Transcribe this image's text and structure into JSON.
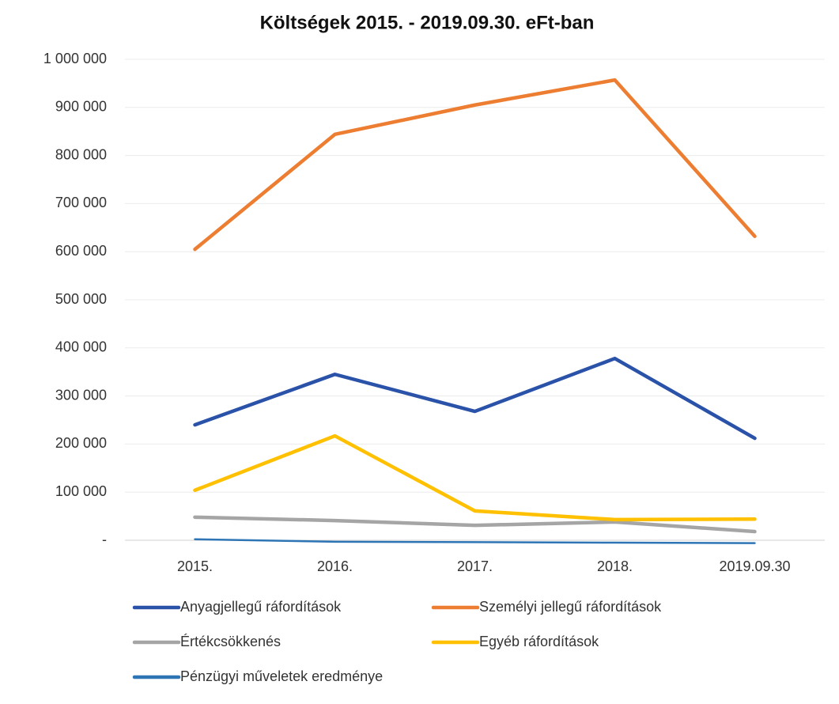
{
  "chart_data": {
    "type": "line",
    "title": "Költségek 2015. - 2019.09.30. eFt-ban",
    "categories": [
      "2015.",
      "2016.",
      "2017.",
      "2018.",
      "2019.09.30"
    ],
    "series": [
      {
        "name": "Anyagjellegű ráfordítások",
        "color": "#2a52a8",
        "values": [
          240000,
          345000,
          268000,
          378000,
          212000
        ]
      },
      {
        "name": "Személyi jellegű ráfordítások",
        "color": "#ed7d31",
        "values": [
          605000,
          844000,
          905000,
          957000,
          632000
        ]
      },
      {
        "name": "Értékcsökkenés",
        "color": "#a5a5a5",
        "values": [
          48000,
          41000,
          31000,
          38000,
          18000
        ]
      },
      {
        "name": "Egyéb ráfordítások",
        "color": "#ffc000",
        "values": [
          104000,
          217000,
          61000,
          43000,
          44000
        ]
      },
      {
        "name": "Pénzügyi műveletek eredménye",
        "color": "#2e75b6",
        "values": [
          2000,
          -3000,
          -4000,
          -5000,
          -6000
        ]
      }
    ],
    "ylim": [
      0,
      1000000
    ],
    "yticks": [
      {
        "value": 0,
        "label": "-"
      },
      {
        "value": 100000,
        "label": "100 000"
      },
      {
        "value": 200000,
        "label": "200 000"
      },
      {
        "value": 300000,
        "label": "300 000"
      },
      {
        "value": 400000,
        "label": "400 000"
      },
      {
        "value": 500000,
        "label": "500 000"
      },
      {
        "value": 600000,
        "label": "600 000"
      },
      {
        "value": 700000,
        "label": "700 000"
      },
      {
        "value": 800000,
        "label": "800 000"
      },
      {
        "value": 900000,
        "label": "900 000"
      },
      {
        "value": 1000000,
        "label": "1 000 000"
      }
    ],
    "grid": true
  }
}
